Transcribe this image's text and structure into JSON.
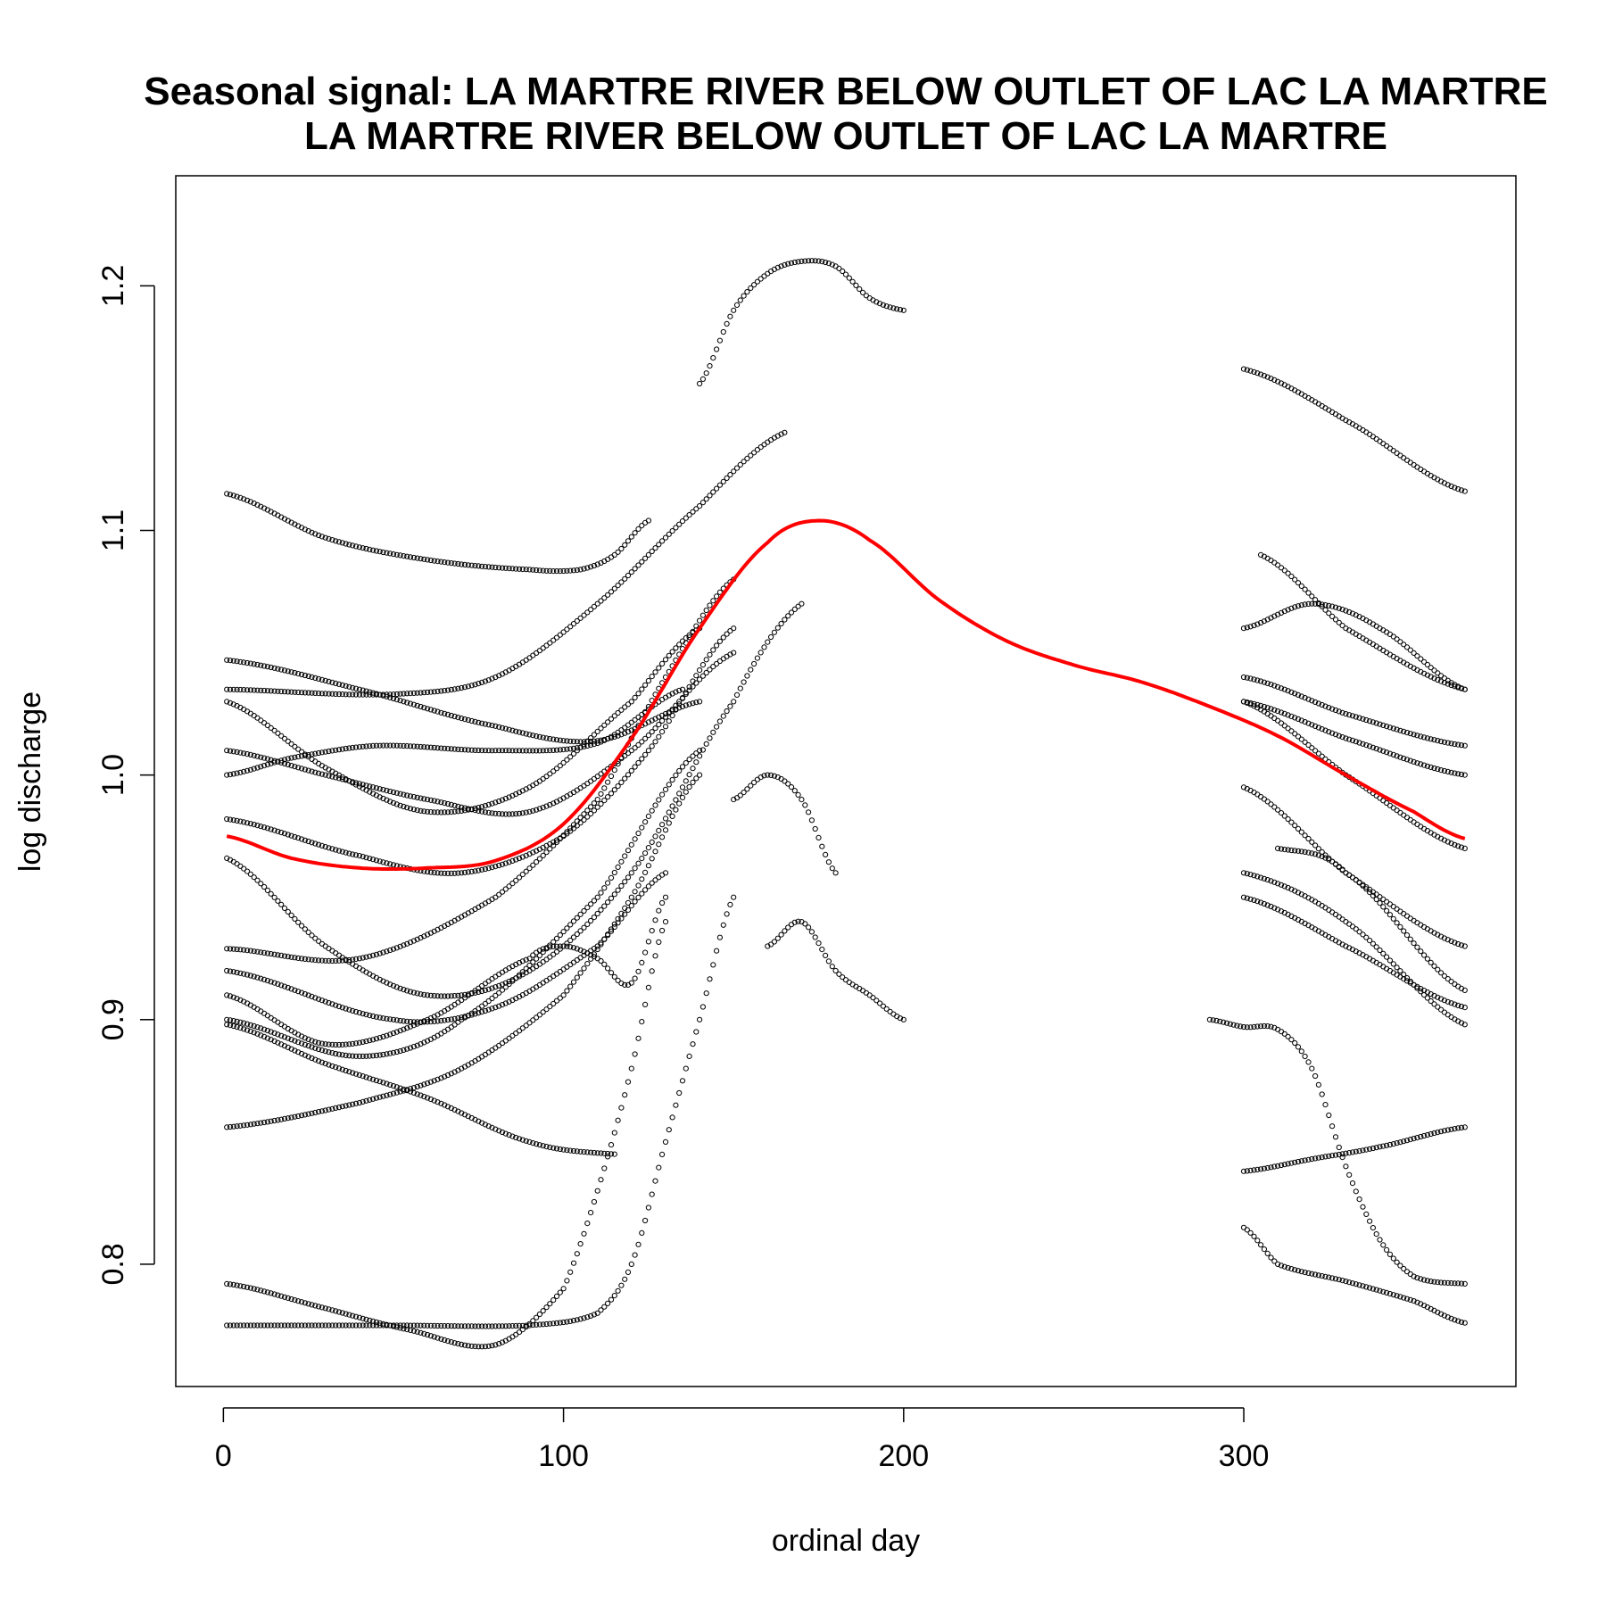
{
  "chart_data": {
    "type": "scatter",
    "title": "Seasonal signal: LA MARTRE RIVER BELOW OUTLET OF LAC LA MARTRE",
    "subtitle": "LA MARTRE RIVER BELOW OUTLET OF LAC LA MARTRE",
    "xlabel": "ordinal day",
    "ylabel": "log discharge",
    "xlim": [
      -14,
      380
    ],
    "ylim": [
      0.75,
      1.245
    ],
    "x_ticks": [
      0,
      100,
      200,
      300
    ],
    "y_ticks": [
      0.8,
      0.9,
      1.0,
      1.1,
      1.2
    ],
    "grid": false,
    "colors": {
      "points": "#000000",
      "smooth": "#ff0000"
    },
    "series": [
      {
        "name": "",
        "kind": "points",
        "x": [
          1,
          30,
          60,
          90,
          105,
          115,
          125
        ],
        "y": [
          1.115,
          1.097,
          1.088,
          1.084,
          1.084,
          1.09,
          1.104
        ]
      },
      {
        "name": "",
        "kind": "points",
        "x": [
          300,
          330,
          365
        ],
        "y": [
          1.166,
          1.145,
          1.116
        ]
      },
      {
        "name": "",
        "kind": "points",
        "x": [
          1,
          40,
          80,
          110,
          140
        ],
        "y": [
          1.047,
          1.035,
          1.02,
          1.014,
          1.03
        ]
      },
      {
        "name": "",
        "kind": "points",
        "x": [
          1,
          50,
          80,
          110,
          140,
          165
        ],
        "y": [
          1.035,
          1.033,
          1.04,
          1.07,
          1.11,
          1.14
        ]
      },
      {
        "name": "",
        "kind": "points",
        "x": [
          1,
          30,
          60,
          90,
          120,
          140
        ],
        "y": [
          1.03,
          1.003,
          0.985,
          0.995,
          1.03,
          1.06
        ]
      },
      {
        "name": "",
        "kind": "points",
        "x": [
          1,
          20,
          45,
          80,
          110,
          135
        ],
        "y": [
          1.0,
          1.007,
          1.012,
          1.01,
          1.013,
          1.035
        ]
      },
      {
        "name": "",
        "kind": "points",
        "x": [
          1,
          30,
          60,
          90,
          120,
          150
        ],
        "y": [
          1.01,
          1.0,
          0.99,
          0.985,
          1.01,
          1.05
        ]
      },
      {
        "name": "",
        "kind": "points",
        "x": [
          1,
          40,
          70,
          100,
          125,
          150
        ],
        "y": [
          0.982,
          0.967,
          0.96,
          0.975,
          1.01,
          1.06
        ]
      },
      {
        "name": "",
        "kind": "points",
        "x": [
          1,
          30,
          60,
          90,
          120,
          150,
          170
        ],
        "y": [
          0.966,
          0.93,
          0.91,
          0.92,
          0.96,
          1.03,
          1.07
        ]
      },
      {
        "name": "",
        "kind": "points",
        "x": [
          1,
          40,
          80,
          110,
          130,
          150
        ],
        "y": [
          0.929,
          0.925,
          0.95,
          0.99,
          1.04,
          1.08
        ]
      },
      {
        "name": "",
        "kind": "points",
        "x": [
          1,
          50,
          80,
          110,
          130
        ],
        "y": [
          0.92,
          0.9,
          0.905,
          0.93,
          0.96
        ]
      },
      {
        "name": "",
        "kind": "points",
        "x": [
          1,
          30,
          60,
          90,
          100,
          110,
          120,
          130
        ],
        "y": [
          0.91,
          0.89,
          0.9,
          0.925,
          0.93,
          0.925,
          0.915,
          0.95
        ]
      },
      {
        "name": "",
        "kind": "points",
        "x": [
          1,
          40,
          70,
          110,
          140
        ],
        "y": [
          0.9,
          0.885,
          0.9,
          0.95,
          1.01
        ]
      },
      {
        "name": "",
        "kind": "points",
        "x": [
          1,
          30,
          60,
          90,
          115
        ],
        "y": [
          0.898,
          0.882,
          0.868,
          0.85,
          0.845
        ]
      },
      {
        "name": "",
        "kind": "points",
        "x": [
          1,
          40,
          70,
          100,
          120,
          140
        ],
        "y": [
          0.856,
          0.866,
          0.88,
          0.91,
          0.95,
          1.0
        ]
      },
      {
        "name": "",
        "kind": "points",
        "x": [
          1,
          30,
          55,
          80,
          100,
          110,
          120,
          130
        ],
        "y": [
          0.792,
          0.782,
          0.773,
          0.767,
          0.79,
          0.83,
          0.88,
          0.94
        ]
      },
      {
        "name": "",
        "kind": "points",
        "x": [
          1,
          50,
          90,
          110,
          120,
          130,
          140,
          150
        ],
        "y": [
          0.775,
          0.775,
          0.775,
          0.78,
          0.8,
          0.85,
          0.9,
          0.95
        ]
      },
      {
        "name": "",
        "kind": "points",
        "x": [
          140,
          150,
          160,
          170,
          180,
          190,
          200
        ],
        "y": [
          1.16,
          1.19,
          1.205,
          1.21,
          1.208,
          1.195,
          1.19
        ]
      },
      {
        "name": "",
        "kind": "points",
        "x": [
          150,
          160,
          170,
          180
        ],
        "y": [
          0.99,
          1.0,
          0.99,
          0.96
        ]
      },
      {
        "name": "",
        "kind": "points",
        "x": [
          160,
          170,
          180,
          190,
          200
        ],
        "y": [
          0.93,
          0.94,
          0.92,
          0.91,
          0.9
        ]
      },
      {
        "name": "",
        "kind": "points",
        "x": [
          290,
          300,
          310,
          320,
          330,
          340,
          350,
          365
        ],
        "y": [
          0.9,
          0.897,
          0.896,
          0.88,
          0.84,
          0.81,
          0.795,
          0.792
        ]
      },
      {
        "name": "",
        "kind": "points",
        "x": [
          300,
          320,
          340,
          365
        ],
        "y": [
          0.838,
          0.843,
          0.848,
          0.856
        ]
      },
      {
        "name": "",
        "kind": "points",
        "x": [
          300,
          310,
          330,
          350,
          365
        ],
        "y": [
          0.815,
          0.8,
          0.793,
          0.785,
          0.776
        ]
      },
      {
        "name": "",
        "kind": "points",
        "x": [
          300,
          320,
          340,
          365
        ],
        "y": [
          1.06,
          1.07,
          1.06,
          1.035
        ]
      },
      {
        "name": "",
        "kind": "points",
        "x": [
          305,
          330,
          365
        ],
        "y": [
          1.09,
          1.06,
          1.035
        ]
      },
      {
        "name": "",
        "kind": "points",
        "x": [
          300,
          330,
          365
        ],
        "y": [
          1.04,
          1.025,
          1.012
        ]
      },
      {
        "name": "",
        "kind": "points",
        "x": [
          300,
          330,
          365
        ],
        "y": [
          1.03,
          1.015,
          1.0
        ]
      },
      {
        "name": "",
        "kind": "points",
        "x": [
          300,
          330,
          365
        ],
        "y": [
          1.03,
          1.0,
          0.97
        ]
      },
      {
        "name": "",
        "kind": "points",
        "x": [
          300,
          330,
          365
        ],
        "y": [
          0.995,
          0.96,
          0.93
        ]
      },
      {
        "name": "",
        "kind": "points",
        "x": [
          300,
          330,
          365
        ],
        "y": [
          0.96,
          0.94,
          0.898
        ]
      },
      {
        "name": "",
        "kind": "points",
        "x": [
          300,
          330,
          365
        ],
        "y": [
          0.95,
          0.93,
          0.905
        ]
      },
      {
        "name": "",
        "kind": "points",
        "x": [
          310,
          330,
          365
        ],
        "y": [
          0.97,
          0.96,
          0.912
        ]
      },
      {
        "name": "",
        "kind": "smooth",
        "x": [
          1,
          20,
          40,
          60,
          80,
          100,
          120,
          140,
          160,
          175,
          190,
          210,
          230,
          250,
          270,
          290,
          310,
          330,
          350,
          365
        ],
        "y": [
          0.975,
          0.966,
          0.962,
          0.962,
          0.965,
          0.98,
          1.015,
          1.06,
          1.095,
          1.104,
          1.096,
          1.072,
          1.055,
          1.045,
          1.038,
          1.028,
          1.016,
          1.0,
          0.985,
          0.974
        ]
      }
    ]
  }
}
